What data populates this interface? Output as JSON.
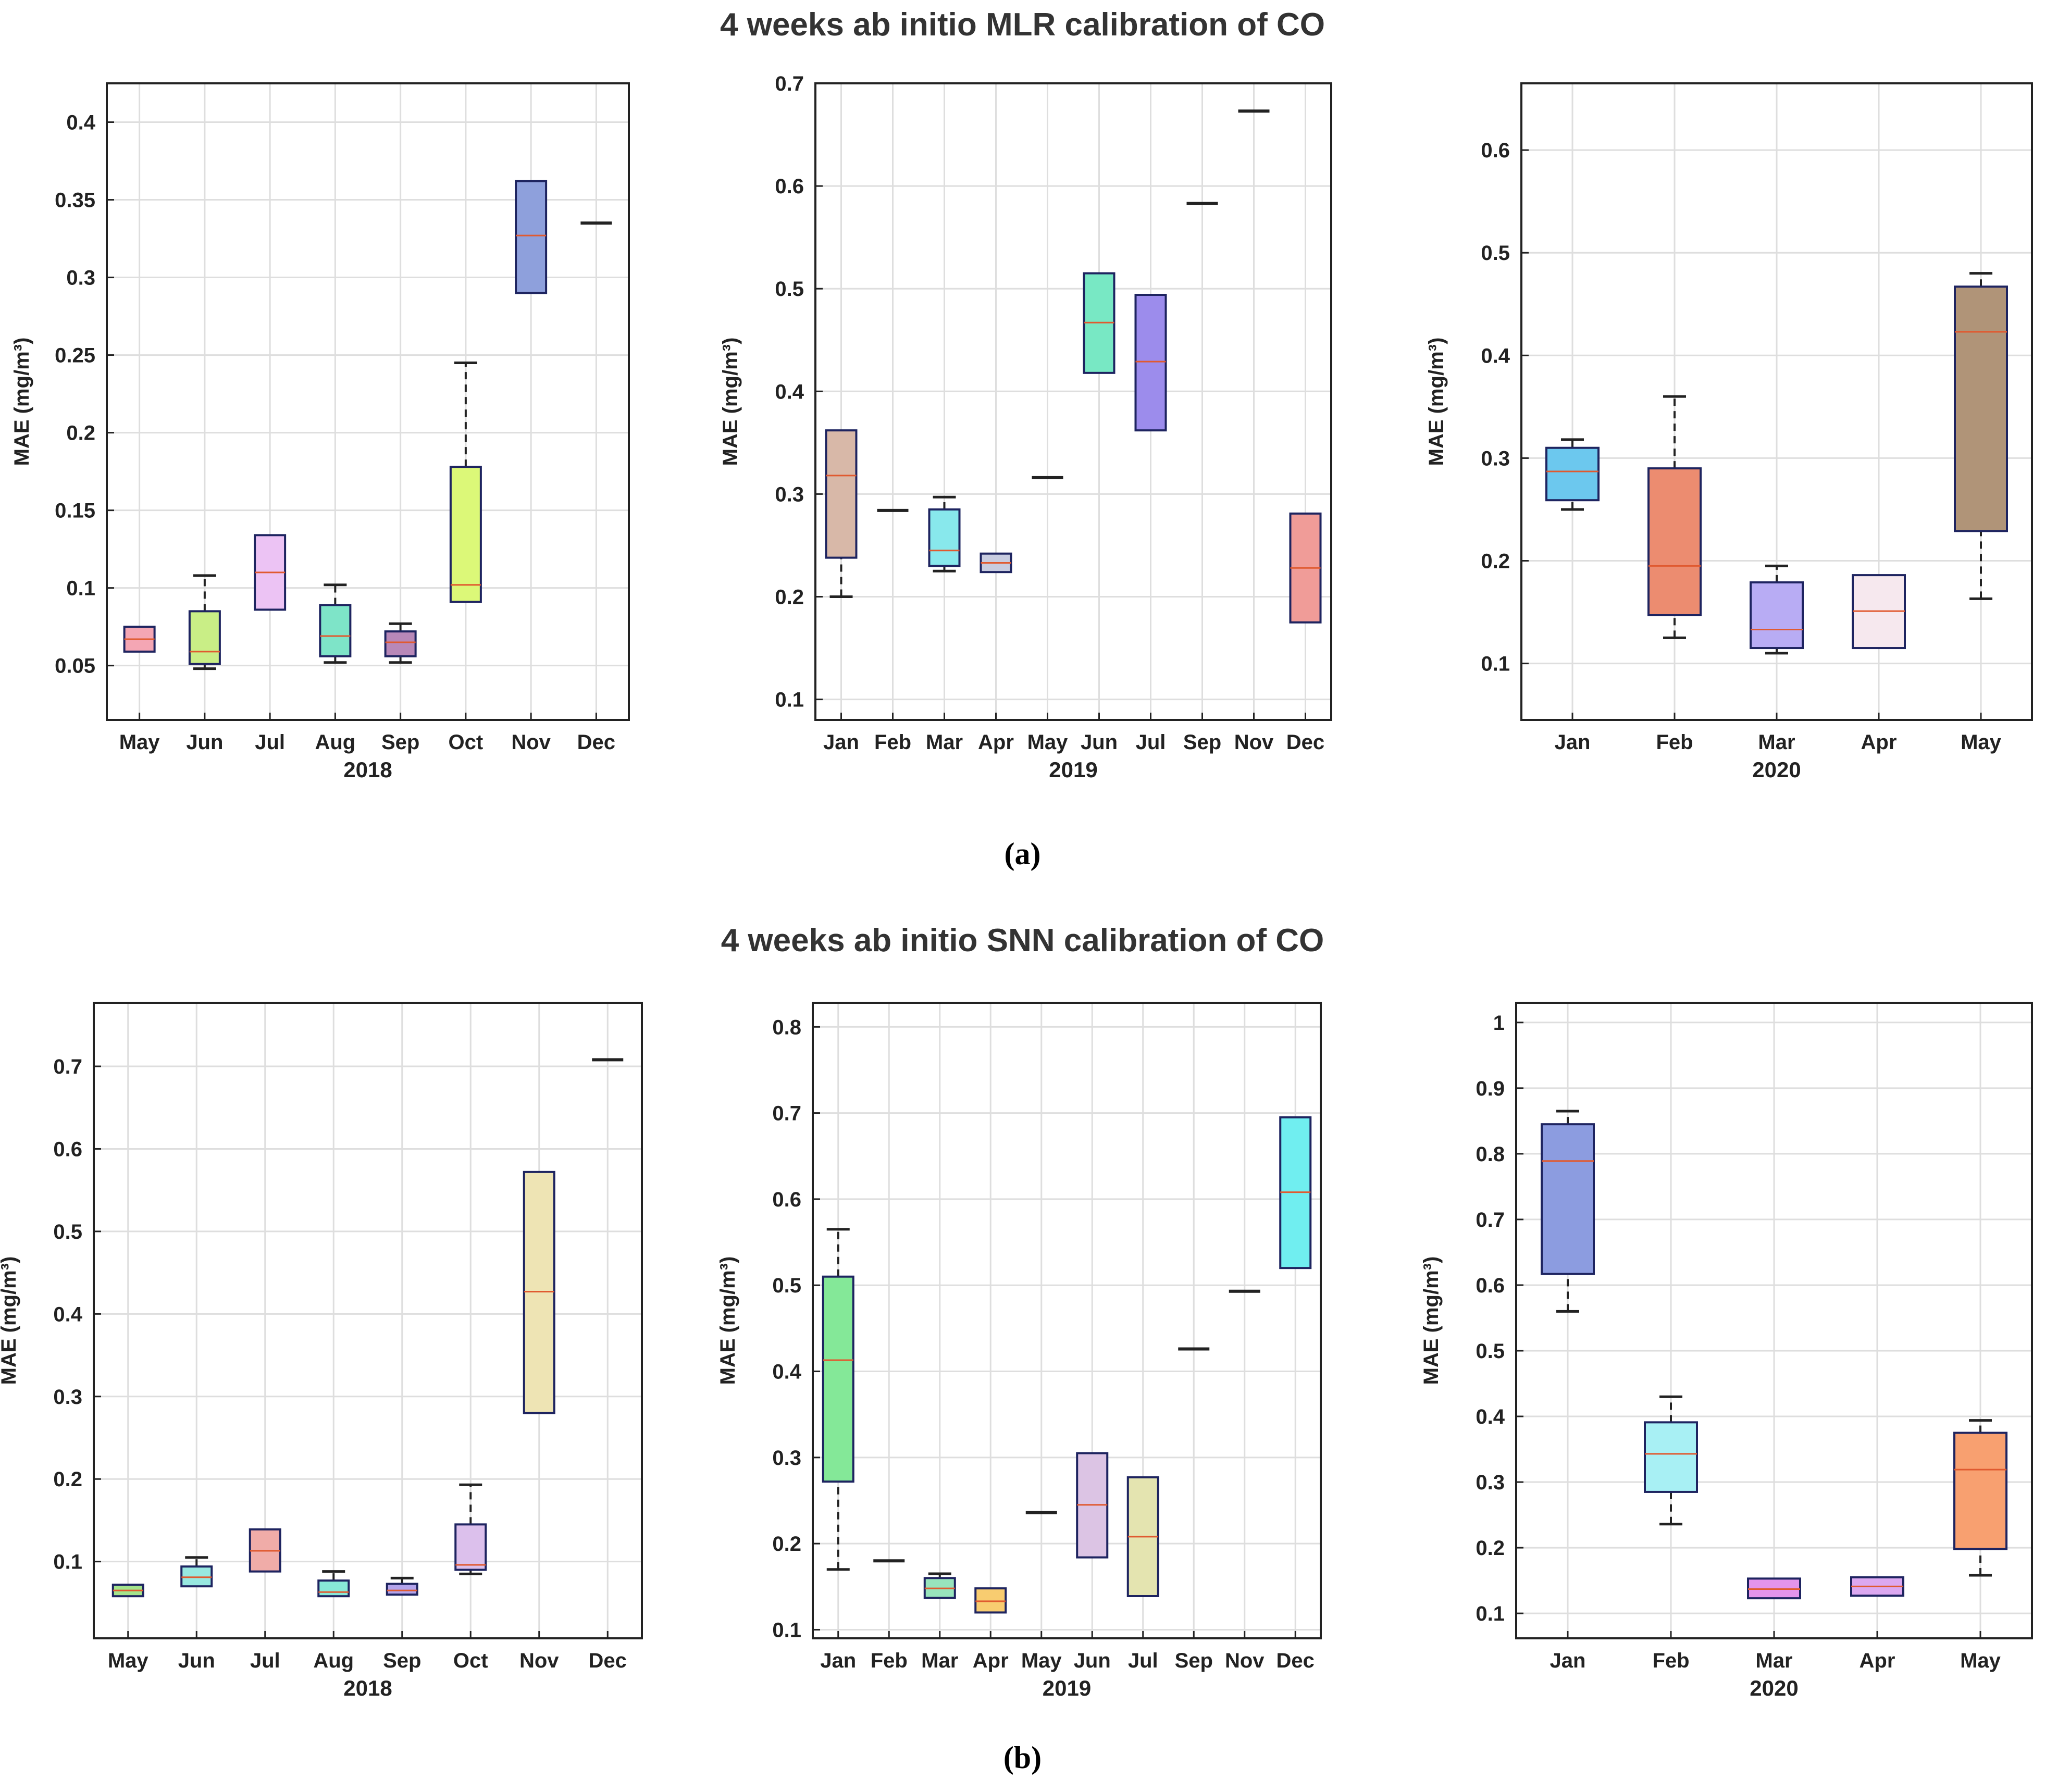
{
  "figure": {
    "title_a": "4 weeks ab initio MLR calibration of CO",
    "title_b": "4 weeks ab initio SNN calibration of CO",
    "label_a": "(a)",
    "label_b": "(b)"
  },
  "chart_data": [
    {
      "id": "a-2018",
      "type": "box",
      "year_label": "2018",
      "ylabel": "MAE (mg/m³)",
      "ylim": [
        0.015,
        0.425
      ],
      "yticks": [
        0.05,
        0.1,
        0.15,
        0.2,
        0.25,
        0.3,
        0.35,
        0.4
      ],
      "ytick_labels": [
        "0.05",
        "0.1",
        "0.15",
        "0.2",
        "0.25",
        "0.3",
        "0.35",
        "0.4"
      ],
      "grid": true,
      "categories": [
        "May",
        "Jun",
        "Jul",
        "Aug",
        "Sep",
        "Oct",
        "Nov",
        "Dec"
      ],
      "boxes": [
        {
          "cat": "May",
          "q1": 0.059,
          "median": 0.067,
          "q3": 0.075,
          "wlo": null,
          "whi": null,
          "color": "#f4a6b4"
        },
        {
          "cat": "Jun",
          "q1": 0.051,
          "median": 0.059,
          "q3": 0.085,
          "wlo": 0.048,
          "whi": 0.108,
          "color": "#c9ee86"
        },
        {
          "cat": "Jul",
          "q1": 0.086,
          "median": 0.11,
          "q3": 0.134,
          "wlo": null,
          "whi": null,
          "color": "#ecc3f4"
        },
        {
          "cat": "Aug",
          "q1": 0.056,
          "median": 0.069,
          "q3": 0.089,
          "wlo": 0.052,
          "whi": 0.102,
          "color": "#7ee4c8"
        },
        {
          "cat": "Sep",
          "q1": 0.056,
          "median": 0.065,
          "q3": 0.072,
          "wlo": 0.052,
          "whi": 0.077,
          "color": "#b888b8"
        },
        {
          "cat": "Oct",
          "q1": 0.091,
          "median": 0.102,
          "q3": 0.178,
          "wlo": null,
          "whi": 0.245,
          "color": "#dcf878"
        },
        {
          "cat": "Nov",
          "q1": 0.29,
          "median": 0.327,
          "q3": 0.362,
          "wlo": null,
          "whi": null,
          "color": "#8ea0dc"
        },
        {
          "cat": "Dec",
          "q1": 0.335,
          "median": 0.335,
          "q3": 0.335,
          "wlo": null,
          "whi": null,
          "color": "#333333"
        }
      ]
    },
    {
      "id": "a-2019",
      "type": "box",
      "year_label": "2019",
      "ylabel": "MAE (mg/m³)",
      "ylim": [
        0.08,
        0.7
      ],
      "yticks": [
        0.1,
        0.2,
        0.3,
        0.4,
        0.5,
        0.6,
        0.7
      ],
      "ytick_labels": [
        "0.1",
        "0.2",
        "0.3",
        "0.4",
        "0.5",
        "0.6",
        "0.7"
      ],
      "grid": true,
      "categories": [
        "Jan",
        "Feb",
        "Mar",
        "Apr",
        "May",
        "Jun",
        "Jul",
        "Sep",
        "Nov",
        "Dec"
      ],
      "boxes": [
        {
          "cat": "Jan",
          "q1": 0.238,
          "median": 0.318,
          "q3": 0.362,
          "wlo": 0.2,
          "whi": null,
          "color": "#d8b8a8"
        },
        {
          "cat": "Feb",
          "q1": 0.284,
          "median": 0.284,
          "q3": 0.284,
          "wlo": null,
          "whi": null,
          "color": "#333333"
        },
        {
          "cat": "Mar",
          "q1": 0.23,
          "median": 0.245,
          "q3": 0.285,
          "wlo": 0.225,
          "whi": 0.297,
          "color": "#88e8ec"
        },
        {
          "cat": "Apr",
          "q1": 0.224,
          "median": 0.233,
          "q3": 0.242,
          "wlo": null,
          "whi": null,
          "color": "#c8cce0"
        },
        {
          "cat": "May",
          "q1": 0.316,
          "median": 0.316,
          "q3": 0.316,
          "wlo": null,
          "whi": null,
          "color": "#333333"
        },
        {
          "cat": "Jun",
          "q1": 0.418,
          "median": 0.467,
          "q3": 0.515,
          "wlo": null,
          "whi": null,
          "color": "#78e8c4"
        },
        {
          "cat": "Jul",
          "q1": 0.362,
          "median": 0.429,
          "q3": 0.494,
          "wlo": null,
          "whi": null,
          "color": "#9c8cec"
        },
        {
          "cat": "Sep",
          "q1": 0.583,
          "median": 0.583,
          "q3": 0.583,
          "wlo": null,
          "whi": null,
          "color": "#333333"
        },
        {
          "cat": "Nov",
          "q1": 0.673,
          "median": 0.673,
          "q3": 0.673,
          "wlo": null,
          "whi": null,
          "color": "#333333"
        },
        {
          "cat": "Dec",
          "q1": 0.175,
          "median": 0.228,
          "q3": 0.281,
          "wlo": null,
          "whi": null,
          "color": "#f09c98"
        }
      ]
    },
    {
      "id": "a-2020",
      "type": "box",
      "year_label": "2020",
      "ylabel": "MAE (mg/m³)",
      "ylim": [
        0.045,
        0.665
      ],
      "yticks": [
        0.1,
        0.2,
        0.3,
        0.4,
        0.5,
        0.6
      ],
      "ytick_labels": [
        "0.1",
        "0.2",
        "0.3",
        "0.4",
        "0.5",
        "0.6"
      ],
      "grid": true,
      "categories": [
        "Jan",
        "Feb",
        "Mar",
        "Apr",
        "May"
      ],
      "boxes": [
        {
          "cat": "Jan",
          "q1": 0.259,
          "median": 0.287,
          "q3": 0.31,
          "wlo": 0.25,
          "whi": 0.318,
          "color": "#6cc8ee"
        },
        {
          "cat": "Feb",
          "q1": 0.147,
          "median": 0.195,
          "q3": 0.29,
          "wlo": 0.125,
          "whi": 0.36,
          "color": "#ec8c70"
        },
        {
          "cat": "Mar",
          "q1": 0.115,
          "median": 0.133,
          "q3": 0.179,
          "wlo": 0.11,
          "whi": 0.195,
          "color": "#b8acf4"
        },
        {
          "cat": "Apr",
          "q1": 0.115,
          "median": 0.151,
          "q3": 0.186,
          "wlo": null,
          "whi": null,
          "color": "#f6e8ee"
        },
        {
          "cat": "May",
          "q1": 0.229,
          "median": 0.423,
          "q3": 0.467,
          "wlo": 0.163,
          "whi": 0.48,
          "color": "#b09478"
        }
      ]
    },
    {
      "id": "b-2018",
      "type": "box",
      "year_label": "2018",
      "ylabel": "MAE (mg/m³)",
      "ylim": [
        0.007,
        0.777
      ],
      "yticks": [
        0.1,
        0.2,
        0.3,
        0.4,
        0.5,
        0.6,
        0.7
      ],
      "ytick_labels": [
        "0.1",
        "0.2",
        "0.3",
        "0.4",
        "0.5",
        "0.6",
        "0.7"
      ],
      "grid": true,
      "categories": [
        "May",
        "Jun",
        "Jul",
        "Aug",
        "Sep",
        "Oct",
        "Nov",
        "Dec"
      ],
      "boxes": [
        {
          "cat": "May",
          "q1": 0.058,
          "median": 0.065,
          "q3": 0.072,
          "wlo": null,
          "whi": null,
          "color": "#a4e48c"
        },
        {
          "cat": "Jun",
          "q1": 0.07,
          "median": 0.081,
          "q3": 0.094,
          "wlo": null,
          "whi": 0.105,
          "color": "#98e8e0"
        },
        {
          "cat": "Jul",
          "q1": 0.088,
          "median": 0.113,
          "q3": 0.139,
          "wlo": null,
          "whi": null,
          "color": "#f0aca8"
        },
        {
          "cat": "Aug",
          "q1": 0.058,
          "median": 0.063,
          "q3": 0.077,
          "wlo": null,
          "whi": 0.088,
          "color": "#88e8d8"
        },
        {
          "cat": "Sep",
          "q1": 0.06,
          "median": 0.065,
          "q3": 0.073,
          "wlo": null,
          "whi": 0.08,
          "color": "#b4a4ec"
        },
        {
          "cat": "Oct",
          "q1": 0.09,
          "median": 0.096,
          "q3": 0.145,
          "wlo": 0.085,
          "whi": 0.193,
          "color": "#dcc0ec"
        },
        {
          "cat": "Nov",
          "q1": 0.28,
          "median": 0.427,
          "q3": 0.572,
          "wlo": null,
          "whi": null,
          "color": "#eee4b4"
        },
        {
          "cat": "Dec",
          "q1": 0.708,
          "median": 0.708,
          "q3": 0.708,
          "wlo": null,
          "whi": null,
          "color": "#333333"
        }
      ]
    },
    {
      "id": "b-2019",
      "type": "box",
      "year_label": "2019",
      "ylabel": "MAE (mg/m³)",
      "ylim": [
        0.09,
        0.828
      ],
      "yticks": [
        0.1,
        0.2,
        0.3,
        0.4,
        0.5,
        0.6,
        0.7,
        0.8
      ],
      "ytick_labels": [
        "0.1",
        "0.2",
        "0.3",
        "0.4",
        "0.5",
        "0.6",
        "0.7",
        "0.8"
      ],
      "grid": true,
      "categories": [
        "Jan",
        "Feb",
        "Mar",
        "Apr",
        "May",
        "Jun",
        "Jul",
        "Sep",
        "Nov",
        "Dec"
      ],
      "boxes": [
        {
          "cat": "Jan",
          "q1": 0.272,
          "median": 0.413,
          "q3": 0.51,
          "wlo": 0.17,
          "whi": 0.565,
          "color": "#84e898"
        },
        {
          "cat": "Feb",
          "q1": 0.18,
          "median": 0.18,
          "q3": 0.18,
          "wlo": null,
          "whi": null,
          "color": "#333333"
        },
        {
          "cat": "Mar",
          "q1": 0.137,
          "median": 0.148,
          "q3": 0.16,
          "wlo": null,
          "whi": 0.165,
          "color": "#98e4bc"
        },
        {
          "cat": "Apr",
          "q1": 0.12,
          "median": 0.133,
          "q3": 0.148,
          "wlo": null,
          "whi": null,
          "color": "#f8cc70"
        },
        {
          "cat": "May",
          "q1": 0.236,
          "median": 0.236,
          "q3": 0.236,
          "wlo": null,
          "whi": null,
          "color": "#333333"
        },
        {
          "cat": "Jun",
          "q1": 0.184,
          "median": 0.245,
          "q3": 0.305,
          "wlo": null,
          "whi": null,
          "color": "#dcc4e4"
        },
        {
          "cat": "Jul",
          "q1": 0.139,
          "median": 0.208,
          "q3": 0.277,
          "wlo": null,
          "whi": null,
          "color": "#e4e4b0"
        },
        {
          "cat": "Sep",
          "q1": 0.426,
          "median": 0.426,
          "q3": 0.426,
          "wlo": null,
          "whi": null,
          "color": "#333333"
        },
        {
          "cat": "Nov",
          "q1": 0.493,
          "median": 0.493,
          "q3": 0.493,
          "wlo": null,
          "whi": null,
          "color": "#333333"
        },
        {
          "cat": "Dec",
          "q1": 0.52,
          "median": 0.608,
          "q3": 0.695,
          "wlo": null,
          "whi": null,
          "color": "#70eef0"
        }
      ]
    },
    {
      "id": "b-2020",
      "type": "box",
      "year_label": "2020",
      "ylabel": "MAE (mg/m³)",
      "ylim": [
        0.062,
        1.03
      ],
      "yticks": [
        0.1,
        0.2,
        0.3,
        0.4,
        0.5,
        0.6,
        0.7,
        0.8,
        0.9,
        1
      ],
      "ytick_labels": [
        "0.1",
        "0.2",
        "0.3",
        "0.4",
        "0.5",
        "0.6",
        "0.7",
        "0.8",
        "0.9",
        "1"
      ],
      "grid": true,
      "categories": [
        "Jan",
        "Feb",
        "Mar",
        "Apr",
        "May"
      ],
      "boxes": [
        {
          "cat": "Jan",
          "q1": 0.617,
          "median": 0.789,
          "q3": 0.845,
          "wlo": 0.56,
          "whi": 0.865,
          "color": "#8c9ce0"
        },
        {
          "cat": "Feb",
          "q1": 0.285,
          "median": 0.343,
          "q3": 0.391,
          "wlo": 0.236,
          "whi": 0.43,
          "color": "#a8f0f4"
        },
        {
          "cat": "Mar",
          "q1": 0.123,
          "median": 0.137,
          "q3": 0.153,
          "wlo": null,
          "whi": null,
          "color": "#e494ec"
        },
        {
          "cat": "Apr",
          "q1": 0.127,
          "median": 0.141,
          "q3": 0.155,
          "wlo": null,
          "whi": null,
          "color": "#dca8f0"
        },
        {
          "cat": "May",
          "q1": 0.198,
          "median": 0.319,
          "q3": 0.375,
          "wlo": 0.158,
          "whi": 0.394,
          "color": "#f8a070"
        }
      ]
    }
  ]
}
